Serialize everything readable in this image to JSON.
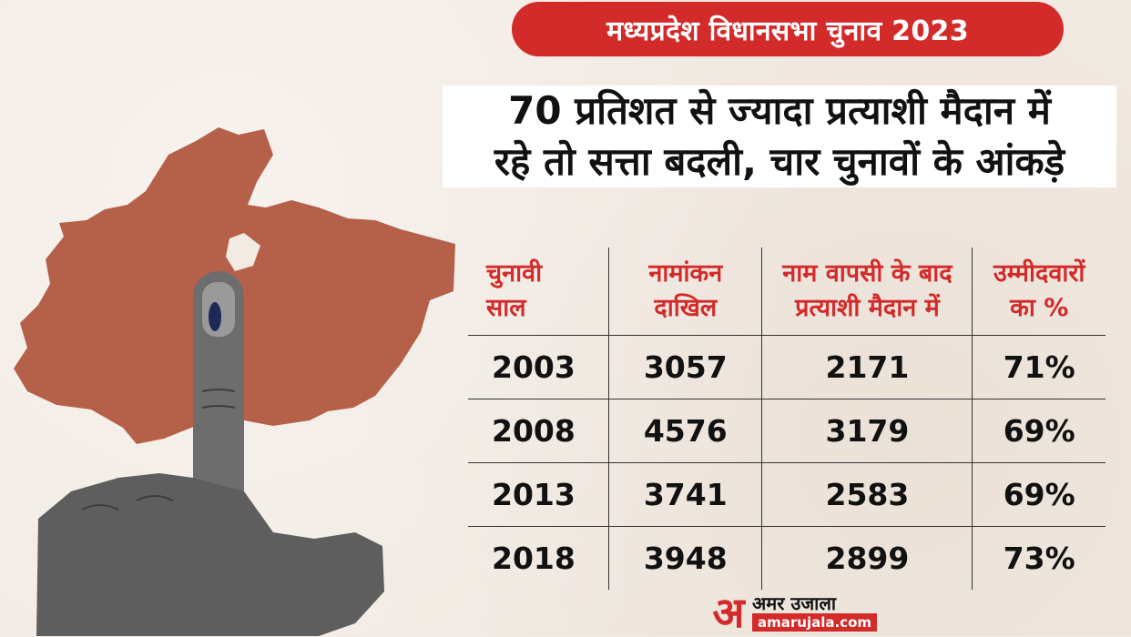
{
  "banner": {
    "title": "मध्यप्रदेश विधानसभा चुनाव 2023"
  },
  "headline": {
    "line1": "70 प्रतिशत से ज्यादा प्रत्याशी मैदान में",
    "line2": "रहे तो सत्ता बदली, चार चुनावों के आंकड़े"
  },
  "table": {
    "headers": [
      {
        "line1": "चुनावी",
        "line2": "साल"
      },
      {
        "line1": "नामांकन",
        "line2": "दाखिल"
      },
      {
        "line1": "नाम वापसी के बाद",
        "line2": "प्रत्याशी मैदान में"
      },
      {
        "line1": "उम्मीदवारों",
        "line2": "का %"
      }
    ],
    "rows": [
      {
        "year": "2003",
        "nominations": "3057",
        "candidates": "2171",
        "percent": "71%"
      },
      {
        "year": "2008",
        "nominations": "4576",
        "candidates": "3179",
        "percent": "69%"
      },
      {
        "year": "2013",
        "nominations": "3741",
        "candidates": "2583",
        "percent": "69%"
      },
      {
        "year": "2018",
        "nominations": "3948",
        "candidates": "2899",
        "percent": "73%"
      }
    ]
  },
  "logo": {
    "mark": "अ",
    "name": "अमर उजाला",
    "domain": "amarujala.com"
  },
  "colors": {
    "accent": "#d32a2a",
    "map": "#b5614a",
    "background": "#f2ebe4"
  }
}
